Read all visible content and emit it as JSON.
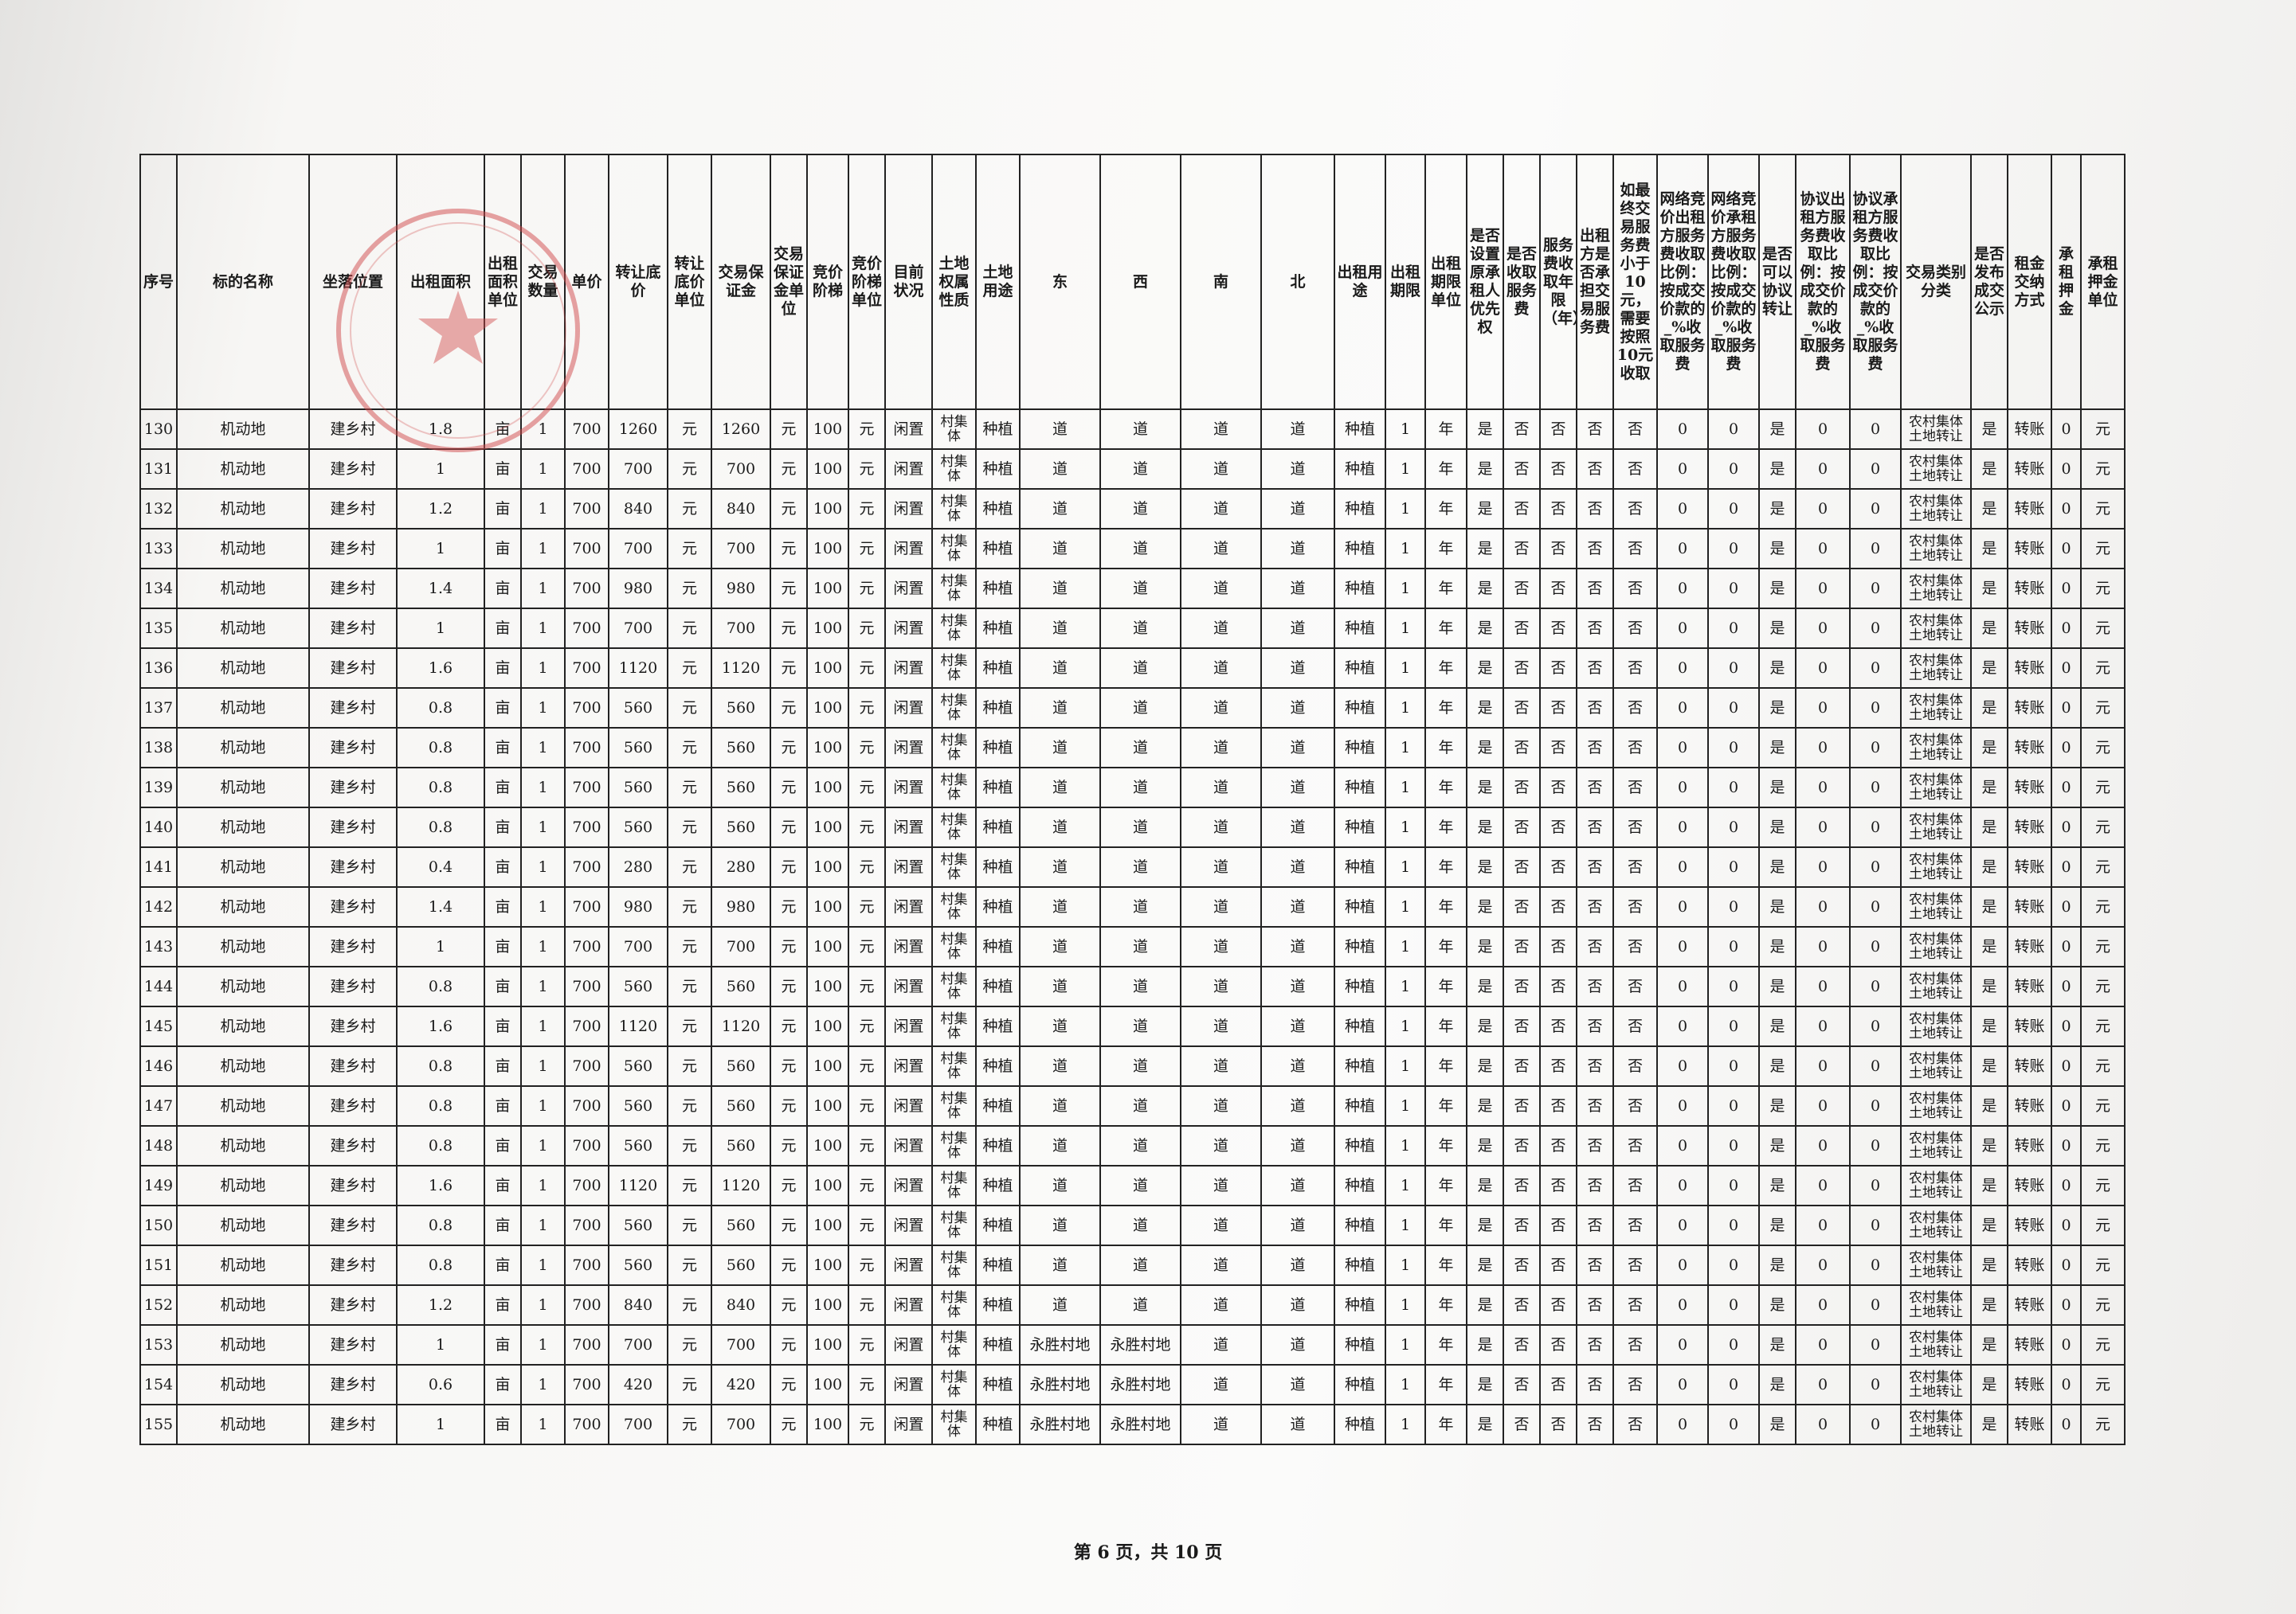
{
  "table": {
    "headers": [
      "序号",
      "标的名称",
      "坐落位置",
      "出租面积",
      "出租面积单位",
      "交易数量",
      "单价",
      "转让底价",
      "转让底价单位",
      "交易保证金",
      "交易保证金单位",
      "竞价阶梯",
      "竞价阶梯单位",
      "目前状况",
      "土地权属性质",
      "土地用途",
      "东",
      "西",
      "南",
      "北",
      "出租用途",
      "出租期限",
      "出租期限单位",
      "是否设置原承租人优先权",
      "是否收取服务费",
      "服务费收取年限（年）",
      "出租方是否承担交易服务费",
      "如最终交易服务费小于10元，需要按照10元收取",
      "网络竞价出租方服务费收取比例：按成交价款的_%收取服务费",
      "网络竞价承租方服务费收取比例：按成交价款的_%收取服务费",
      "是否可以协议转让",
      "协议出租方服务费收取比例：按成交价款的_%收取服务费",
      "协议承租方服务费收取比例：按成交价款的_%收取服务费",
      "交易类别分类",
      "是否发布成交公示",
      "租金交纳方式",
      "承租押金",
      "承租押金单位"
    ],
    "rows": [
      [
        "130",
        "机动地",
        "建乡村",
        "1.8",
        "亩",
        "1",
        "700",
        "1260",
        "元",
        "1260",
        "元",
        "100",
        "元",
        "闲置",
        "村集体",
        "种植",
        "道",
        "道",
        "道",
        "道",
        "种植",
        "1",
        "年",
        "是",
        "否",
        "否",
        "否",
        "否",
        "0",
        "0",
        "是",
        "0",
        "0",
        "农村集体土地转让",
        "是",
        "转账",
        "0",
        "元"
      ],
      [
        "131",
        "机动地",
        "建乡村",
        "1",
        "亩",
        "1",
        "700",
        "700",
        "元",
        "700",
        "元",
        "100",
        "元",
        "闲置",
        "村集体",
        "种植",
        "道",
        "道",
        "道",
        "道",
        "种植",
        "1",
        "年",
        "是",
        "否",
        "否",
        "否",
        "否",
        "0",
        "0",
        "是",
        "0",
        "0",
        "农村集体土地转让",
        "是",
        "转账",
        "0",
        "元"
      ],
      [
        "132",
        "机动地",
        "建乡村",
        "1.2",
        "亩",
        "1",
        "700",
        "840",
        "元",
        "840",
        "元",
        "100",
        "元",
        "闲置",
        "村集体",
        "种植",
        "道",
        "道",
        "道",
        "道",
        "种植",
        "1",
        "年",
        "是",
        "否",
        "否",
        "否",
        "否",
        "0",
        "0",
        "是",
        "0",
        "0",
        "农村集体土地转让",
        "是",
        "转账",
        "0",
        "元"
      ],
      [
        "133",
        "机动地",
        "建乡村",
        "1",
        "亩",
        "1",
        "700",
        "700",
        "元",
        "700",
        "元",
        "100",
        "元",
        "闲置",
        "村集体",
        "种植",
        "道",
        "道",
        "道",
        "道",
        "种植",
        "1",
        "年",
        "是",
        "否",
        "否",
        "否",
        "否",
        "0",
        "0",
        "是",
        "0",
        "0",
        "农村集体土地转让",
        "是",
        "转账",
        "0",
        "元"
      ],
      [
        "134",
        "机动地",
        "建乡村",
        "1.4",
        "亩",
        "1",
        "700",
        "980",
        "元",
        "980",
        "元",
        "100",
        "元",
        "闲置",
        "村集体",
        "种植",
        "道",
        "道",
        "道",
        "道",
        "种植",
        "1",
        "年",
        "是",
        "否",
        "否",
        "否",
        "否",
        "0",
        "0",
        "是",
        "0",
        "0",
        "农村集体土地转让",
        "是",
        "转账",
        "0",
        "元"
      ],
      [
        "135",
        "机动地",
        "建乡村",
        "1",
        "亩",
        "1",
        "700",
        "700",
        "元",
        "700",
        "元",
        "100",
        "元",
        "闲置",
        "村集体",
        "种植",
        "道",
        "道",
        "道",
        "道",
        "种植",
        "1",
        "年",
        "是",
        "否",
        "否",
        "否",
        "否",
        "0",
        "0",
        "是",
        "0",
        "0",
        "农村集体土地转让",
        "是",
        "转账",
        "0",
        "元"
      ],
      [
        "136",
        "机动地",
        "建乡村",
        "1.6",
        "亩",
        "1",
        "700",
        "1120",
        "元",
        "1120",
        "元",
        "100",
        "元",
        "闲置",
        "村集体",
        "种植",
        "道",
        "道",
        "道",
        "道",
        "种植",
        "1",
        "年",
        "是",
        "否",
        "否",
        "否",
        "否",
        "0",
        "0",
        "是",
        "0",
        "0",
        "农村集体土地转让",
        "是",
        "转账",
        "0",
        "元"
      ],
      [
        "137",
        "机动地",
        "建乡村",
        "0.8",
        "亩",
        "1",
        "700",
        "560",
        "元",
        "560",
        "元",
        "100",
        "元",
        "闲置",
        "村集体",
        "种植",
        "道",
        "道",
        "道",
        "道",
        "种植",
        "1",
        "年",
        "是",
        "否",
        "否",
        "否",
        "否",
        "0",
        "0",
        "是",
        "0",
        "0",
        "农村集体土地转让",
        "是",
        "转账",
        "0",
        "元"
      ],
      [
        "138",
        "机动地",
        "建乡村",
        "0.8",
        "亩",
        "1",
        "700",
        "560",
        "元",
        "560",
        "元",
        "100",
        "元",
        "闲置",
        "村集体",
        "种植",
        "道",
        "道",
        "道",
        "道",
        "种植",
        "1",
        "年",
        "是",
        "否",
        "否",
        "否",
        "否",
        "0",
        "0",
        "是",
        "0",
        "0",
        "农村集体土地转让",
        "是",
        "转账",
        "0",
        "元"
      ],
      [
        "139",
        "机动地",
        "建乡村",
        "0.8",
        "亩",
        "1",
        "700",
        "560",
        "元",
        "560",
        "元",
        "100",
        "元",
        "闲置",
        "村集体",
        "种植",
        "道",
        "道",
        "道",
        "道",
        "种植",
        "1",
        "年",
        "是",
        "否",
        "否",
        "否",
        "否",
        "0",
        "0",
        "是",
        "0",
        "0",
        "农村集体土地转让",
        "是",
        "转账",
        "0",
        "元"
      ],
      [
        "140",
        "机动地",
        "建乡村",
        "0.8",
        "亩",
        "1",
        "700",
        "560",
        "元",
        "560",
        "元",
        "100",
        "元",
        "闲置",
        "村集体",
        "种植",
        "道",
        "道",
        "道",
        "道",
        "种植",
        "1",
        "年",
        "是",
        "否",
        "否",
        "否",
        "否",
        "0",
        "0",
        "是",
        "0",
        "0",
        "农村集体土地转让",
        "是",
        "转账",
        "0",
        "元"
      ],
      [
        "141",
        "机动地",
        "建乡村",
        "0.4",
        "亩",
        "1",
        "700",
        "280",
        "元",
        "280",
        "元",
        "100",
        "元",
        "闲置",
        "村集体",
        "种植",
        "道",
        "道",
        "道",
        "道",
        "种植",
        "1",
        "年",
        "是",
        "否",
        "否",
        "否",
        "否",
        "0",
        "0",
        "是",
        "0",
        "0",
        "农村集体土地转让",
        "是",
        "转账",
        "0",
        "元"
      ],
      [
        "142",
        "机动地",
        "建乡村",
        "1.4",
        "亩",
        "1",
        "700",
        "980",
        "元",
        "980",
        "元",
        "100",
        "元",
        "闲置",
        "村集体",
        "种植",
        "道",
        "道",
        "道",
        "道",
        "种植",
        "1",
        "年",
        "是",
        "否",
        "否",
        "否",
        "否",
        "0",
        "0",
        "是",
        "0",
        "0",
        "农村集体土地转让",
        "是",
        "转账",
        "0",
        "元"
      ],
      [
        "143",
        "机动地",
        "建乡村",
        "1",
        "亩",
        "1",
        "700",
        "700",
        "元",
        "700",
        "元",
        "100",
        "元",
        "闲置",
        "村集体",
        "种植",
        "道",
        "道",
        "道",
        "道",
        "种植",
        "1",
        "年",
        "是",
        "否",
        "否",
        "否",
        "否",
        "0",
        "0",
        "是",
        "0",
        "0",
        "农村集体土地转让",
        "是",
        "转账",
        "0",
        "元"
      ],
      [
        "144",
        "机动地",
        "建乡村",
        "0.8",
        "亩",
        "1",
        "700",
        "560",
        "元",
        "560",
        "元",
        "100",
        "元",
        "闲置",
        "村集体",
        "种植",
        "道",
        "道",
        "道",
        "道",
        "种植",
        "1",
        "年",
        "是",
        "否",
        "否",
        "否",
        "否",
        "0",
        "0",
        "是",
        "0",
        "0",
        "农村集体土地转让",
        "是",
        "转账",
        "0",
        "元"
      ],
      [
        "145",
        "机动地",
        "建乡村",
        "1.6",
        "亩",
        "1",
        "700",
        "1120",
        "元",
        "1120",
        "元",
        "100",
        "元",
        "闲置",
        "村集体",
        "种植",
        "道",
        "道",
        "道",
        "道",
        "种植",
        "1",
        "年",
        "是",
        "否",
        "否",
        "否",
        "否",
        "0",
        "0",
        "是",
        "0",
        "0",
        "农村集体土地转让",
        "是",
        "转账",
        "0",
        "元"
      ],
      [
        "146",
        "机动地",
        "建乡村",
        "0.8",
        "亩",
        "1",
        "700",
        "560",
        "元",
        "560",
        "元",
        "100",
        "元",
        "闲置",
        "村集体",
        "种植",
        "道",
        "道",
        "道",
        "道",
        "种植",
        "1",
        "年",
        "是",
        "否",
        "否",
        "否",
        "否",
        "0",
        "0",
        "是",
        "0",
        "0",
        "农村集体土地转让",
        "是",
        "转账",
        "0",
        "元"
      ],
      [
        "147",
        "机动地",
        "建乡村",
        "0.8",
        "亩",
        "1",
        "700",
        "560",
        "元",
        "560",
        "元",
        "100",
        "元",
        "闲置",
        "村集体",
        "种植",
        "道",
        "道",
        "道",
        "道",
        "种植",
        "1",
        "年",
        "是",
        "否",
        "否",
        "否",
        "否",
        "0",
        "0",
        "是",
        "0",
        "0",
        "农村集体土地转让",
        "是",
        "转账",
        "0",
        "元"
      ],
      [
        "148",
        "机动地",
        "建乡村",
        "0.8",
        "亩",
        "1",
        "700",
        "560",
        "元",
        "560",
        "元",
        "100",
        "元",
        "闲置",
        "村集体",
        "种植",
        "道",
        "道",
        "道",
        "道",
        "种植",
        "1",
        "年",
        "是",
        "否",
        "否",
        "否",
        "否",
        "0",
        "0",
        "是",
        "0",
        "0",
        "农村集体土地转让",
        "是",
        "转账",
        "0",
        "元"
      ],
      [
        "149",
        "机动地",
        "建乡村",
        "1.6",
        "亩",
        "1",
        "700",
        "1120",
        "元",
        "1120",
        "元",
        "100",
        "元",
        "闲置",
        "村集体",
        "种植",
        "道",
        "道",
        "道",
        "道",
        "种植",
        "1",
        "年",
        "是",
        "否",
        "否",
        "否",
        "否",
        "0",
        "0",
        "是",
        "0",
        "0",
        "农村集体土地转让",
        "是",
        "转账",
        "0",
        "元"
      ],
      [
        "150",
        "机动地",
        "建乡村",
        "0.8",
        "亩",
        "1",
        "700",
        "560",
        "元",
        "560",
        "元",
        "100",
        "元",
        "闲置",
        "村集体",
        "种植",
        "道",
        "道",
        "道",
        "道",
        "种植",
        "1",
        "年",
        "是",
        "否",
        "否",
        "否",
        "否",
        "0",
        "0",
        "是",
        "0",
        "0",
        "农村集体土地转让",
        "是",
        "转账",
        "0",
        "元"
      ],
      [
        "151",
        "机动地",
        "建乡村",
        "0.8",
        "亩",
        "1",
        "700",
        "560",
        "元",
        "560",
        "元",
        "100",
        "元",
        "闲置",
        "村集体",
        "种植",
        "道",
        "道",
        "道",
        "道",
        "种植",
        "1",
        "年",
        "是",
        "否",
        "否",
        "否",
        "否",
        "0",
        "0",
        "是",
        "0",
        "0",
        "农村集体土地转让",
        "是",
        "转账",
        "0",
        "元"
      ],
      [
        "152",
        "机动地",
        "建乡村",
        "1.2",
        "亩",
        "1",
        "700",
        "840",
        "元",
        "840",
        "元",
        "100",
        "元",
        "闲置",
        "村集体",
        "种植",
        "道",
        "道",
        "道",
        "道",
        "种植",
        "1",
        "年",
        "是",
        "否",
        "否",
        "否",
        "否",
        "0",
        "0",
        "是",
        "0",
        "0",
        "农村集体土地转让",
        "是",
        "转账",
        "0",
        "元"
      ],
      [
        "153",
        "机动地",
        "建乡村",
        "1",
        "亩",
        "1",
        "700",
        "700",
        "元",
        "700",
        "元",
        "100",
        "元",
        "闲置",
        "村集体",
        "种植",
        "永胜村地",
        "永胜村地",
        "道",
        "道",
        "种植",
        "1",
        "年",
        "是",
        "否",
        "否",
        "否",
        "否",
        "0",
        "0",
        "是",
        "0",
        "0",
        "农村集体土地转让",
        "是",
        "转账",
        "0",
        "元"
      ],
      [
        "154",
        "机动地",
        "建乡村",
        "0.6",
        "亩",
        "1",
        "700",
        "420",
        "元",
        "420",
        "元",
        "100",
        "元",
        "闲置",
        "村集体",
        "种植",
        "永胜村地",
        "永胜村地",
        "道",
        "道",
        "种植",
        "1",
        "年",
        "是",
        "否",
        "否",
        "否",
        "否",
        "0",
        "0",
        "是",
        "0",
        "0",
        "农村集体土地转让",
        "是",
        "转账",
        "0",
        "元"
      ],
      [
        "155",
        "机动地",
        "建乡村",
        "1",
        "亩",
        "1",
        "700",
        "700",
        "元",
        "700",
        "元",
        "100",
        "元",
        "闲置",
        "村集体",
        "种植",
        "永胜村地",
        "永胜村地",
        "道",
        "道",
        "种植",
        "1",
        "年",
        "是",
        "否",
        "否",
        "否",
        "否",
        "0",
        "0",
        "是",
        "0",
        "0",
        "农村集体土地转让",
        "是",
        "转账",
        "0",
        "元"
      ]
    ]
  },
  "footer": {
    "page": "第 6 页，共 10 页"
  }
}
